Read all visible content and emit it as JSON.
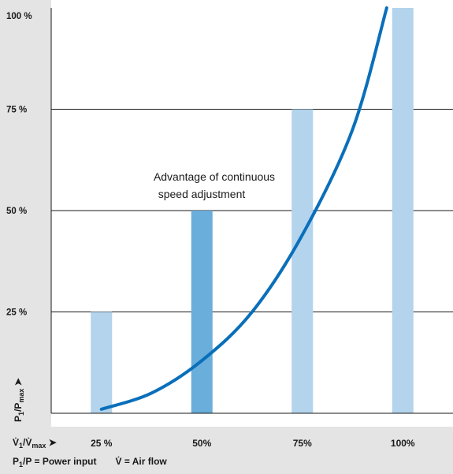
{
  "chart_data": {
    "type": "bar",
    "categories": [
      "25 %",
      "50%",
      "75%",
      "100%"
    ],
    "values": [
      25,
      50,
      75,
      100
    ],
    "highlight_index": 1,
    "curve": {
      "x": [
        25,
        37.5,
        50,
        62.5,
        75,
        87.5,
        96
      ],
      "y": [
        1,
        5,
        13,
        25,
        44,
        70,
        100
      ]
    },
    "ytick_labels": [
      "25 %",
      "50 %",
      "75 %",
      "100 %"
    ],
    "ytick_values": [
      25,
      50,
      75,
      100
    ],
    "ylim": [
      0,
      100
    ],
    "xlim": [
      12.5,
      112.5
    ],
    "ylabel": "P1/Pmax",
    "xlabel": "V̇1/V̇max",
    "annotation": [
      "Advantage of continuous",
      "speed adjustment"
    ],
    "legend_note": "P1/P = Power input     V̇ = Air flow",
    "grid": "horizontal"
  },
  "colors": {
    "bar": "#b3d4ec",
    "bar_highlight": "#6aaedb",
    "curve": "#0a6fba",
    "gridline": "#1a1a1a",
    "strip": "#e4e4e4"
  }
}
